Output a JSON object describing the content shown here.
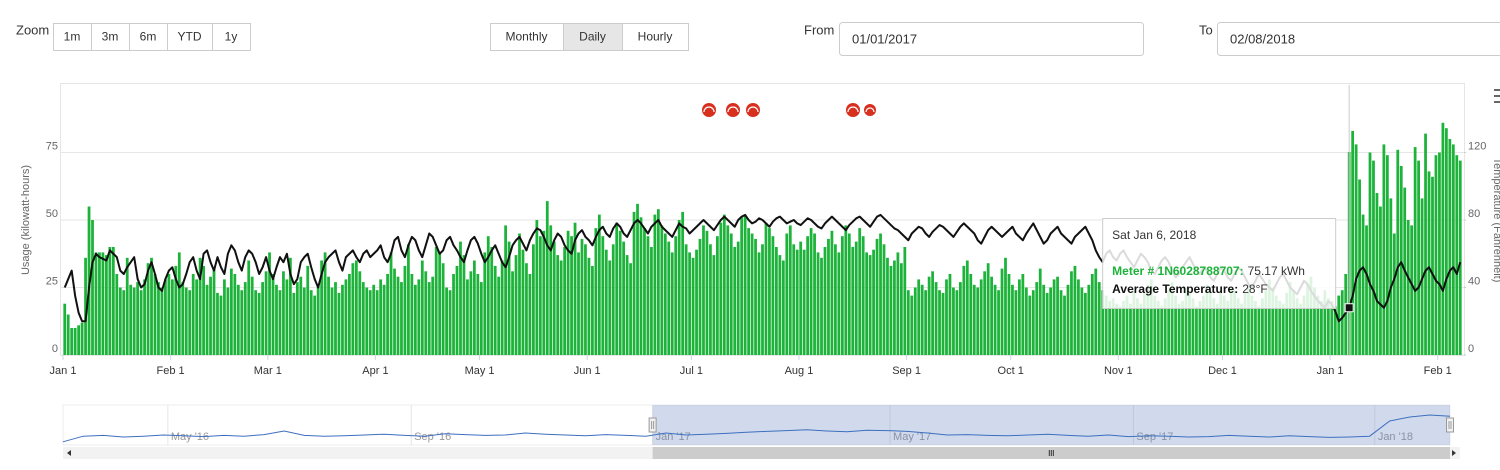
{
  "controls": {
    "zoom_label": "Zoom",
    "zoom_buttons": [
      "1m",
      "3m",
      "6m",
      "YTD",
      "1y"
    ],
    "period_buttons": [
      "Monthly",
      "Daily",
      "Hourly"
    ],
    "active_period": "Daily",
    "from_label": "From",
    "from_value": "01/01/2017",
    "to_label": "To",
    "to_value": "02/08/2018"
  },
  "chart_data": {
    "type": "combo",
    "y_title": "Usage (kilowatt-hours)",
    "y2_title": "Temperature (Fahrenheit)",
    "xlim": [
      0,
      403
    ],
    "xticks": [
      {
        "value": 0,
        "label": "Jan 1"
      },
      {
        "value": 31,
        "label": "Feb 1"
      },
      {
        "value": 59,
        "label": "Mar 1"
      },
      {
        "value": 90,
        "label": "Apr 1"
      },
      {
        "value": 120,
        "label": "May 1"
      },
      {
        "value": 151,
        "label": "Jun 1"
      },
      {
        "value": 181,
        "label": "Jul 1"
      },
      {
        "value": 212,
        "label": "Aug 1"
      },
      {
        "value": 243,
        "label": "Sep 1"
      },
      {
        "value": 273,
        "label": "Oct 1"
      },
      {
        "value": 304,
        "label": "Nov 1"
      },
      {
        "value": 334,
        "label": "Dec 1"
      },
      {
        "value": 365,
        "label": "Jan 1"
      },
      {
        "value": 396,
        "label": "Feb 1"
      }
    ],
    "ylim": [
      0,
      100
    ],
    "yticks": [
      0,
      25,
      50,
      75
    ],
    "y2lim": [
      0,
      160
    ],
    "y2ticks": [
      0,
      40,
      80,
      120
    ],
    "grid": true,
    "series": [
      {
        "type": "bar",
        "color": "#1db33a",
        "values": [
          19,
          15,
          10,
          10,
          11,
          12,
          36,
          55,
          50,
          38,
          38,
          38,
          37,
          40,
          40,
          30,
          25,
          24,
          36,
          26,
          25,
          27,
          24,
          28,
          34,
          36,
          30,
          27,
          25,
          28,
          30,
          28,
          33,
          38,
          27,
          25,
          24,
          30,
          28,
          36,
          33,
          26,
          29,
          32,
          23,
          22,
          28,
          25,
          32,
          30,
          26,
          24,
          27,
          35,
          29,
          24,
          23,
          27,
          31,
          38,
          30,
          26,
          24,
          31,
          28,
          36,
          23,
          27,
          29,
          25,
          33,
          24,
          22,
          26,
          35,
          38,
          29,
          25,
          27,
          23,
          26,
          28,
          30,
          34,
          35,
          31,
          27,
          25,
          24,
          26,
          24,
          28,
          26,
          30,
          38,
          32,
          29,
          27,
          33,
          41,
          30,
          26,
          28,
          35,
          31,
          27,
          29,
          40,
          38,
          34,
          25,
          24,
          30,
          33,
          42,
          37,
          28,
          31,
          35,
          30,
          27,
          38,
          44,
          40,
          33,
          29,
          35,
          48,
          42,
          31,
          37,
          45,
          39,
          34,
          30,
          41,
          50,
          44,
          46,
          57,
          48,
          42,
          37,
          35,
          40,
          46,
          44,
          49,
          38,
          43,
          41,
          36,
          33,
          47,
          52,
          44,
          39,
          35,
          41,
          49,
          46,
          42,
          37,
          34,
          53,
          56,
          51,
          47,
          44,
          40,
          52,
          54,
          48,
          45,
          42,
          38,
          44,
          50,
          53,
          41,
          38,
          36,
          39,
          43,
          48,
          46,
          41,
          37,
          44,
          49,
          52,
          48,
          45,
          40,
          42,
          51,
          52,
          47,
          45,
          43,
          38,
          41,
          49,
          47,
          44,
          40,
          37,
          35,
          45,
          48,
          41,
          39,
          42,
          39,
          44,
          47,
          45,
          38,
          36,
          40,
          43,
          46,
          41,
          38,
          44,
          48,
          45,
          40,
          42,
          47,
          44,
          38,
          37,
          39,
          43,
          45,
          41,
          36,
          33,
          35,
          38,
          34,
          40,
          24,
          22,
          25,
          28,
          26,
          24,
          29,
          31,
          27,
          24,
          23,
          28,
          30,
          25,
          24,
          27,
          33,
          35,
          30,
          26,
          25,
          28,
          31,
          34,
          29,
          26,
          24,
          32,
          36,
          30,
          26,
          24,
          28,
          30,
          25,
          22,
          24,
          27,
          32,
          26,
          23,
          25,
          28,
          29,
          24,
          22,
          26,
          31,
          33,
          28,
          25,
          23,
          26,
          30,
          32,
          27,
          24,
          22,
          20,
          21,
          19,
          18,
          20,
          22,
          19,
          24,
          21,
          19,
          23,
          26,
          28,
          22,
          20,
          18,
          21,
          24,
          27,
          22,
          19,
          20,
          25,
          23,
          21,
          18,
          20,
          22,
          26,
          24,
          21,
          19,
          23,
          22,
          20,
          25,
          24,
          21,
          19,
          23,
          26,
          22,
          20,
          18,
          21,
          24,
          28,
          25,
          22,
          20,
          19,
          23,
          27,
          24,
          21,
          19,
          22,
          26,
          29,
          25,
          22,
          20,
          24,
          21,
          20,
          18,
          22,
          24,
          30,
          75.17,
          83,
          78,
          65,
          52,
          48,
          75,
          72,
          60,
          55,
          78,
          74,
          58,
          45,
          76,
          70,
          62,
          50,
          48,
          77,
          72,
          58,
          82,
          68,
          66,
          74,
          75,
          86,
          84,
          80,
          78,
          74,
          72
        ]
      },
      {
        "type": "line",
        "axis": "y2",
        "color": "#111111",
        "values": [
          40,
          45,
          50,
          35,
          25,
          20,
          20,
          40,
          55,
          60,
          58,
          57,
          56,
          62,
          60,
          58,
          50,
          48,
          52,
          55,
          58,
          45,
          40,
          42,
          50,
          55,
          48,
          40,
          38,
          45,
          50,
          52,
          45,
          40,
          42,
          48,
          55,
          58,
          50,
          45,
          60,
          62,
          55,
          50,
          58,
          52,
          48,
          60,
          65,
          62,
          55,
          50,
          58,
          62,
          60,
          55,
          48,
          52,
          58,
          50,
          45,
          52,
          58,
          55,
          60,
          48,
          42,
          45,
          55,
          58,
          60,
          52,
          45,
          40,
          48,
          55,
          58,
          60,
          62,
          55,
          50,
          58,
          60,
          62,
          58,
          55,
          60,
          62,
          58,
          60,
          62,
          65,
          58,
          55,
          60,
          68,
          70,
          62,
          58,
          65,
          70,
          68,
          62,
          58,
          65,
          72,
          70,
          65,
          60,
          62,
          68,
          70,
          65,
          62,
          58,
          55,
          62,
          68,
          70,
          66,
          60,
          55,
          58,
          62,
          65,
          60,
          55,
          52,
          58,
          65,
          68,
          70,
          66,
          62,
          68,
          72,
          75,
          74,
          70,
          65,
          62,
          68,
          72,
          70,
          65,
          62,
          60,
          68,
          72,
          74,
          70,
          68,
          65,
          70,
          74,
          76,
          72,
          70,
          75,
          78,
          76,
          72,
          70,
          74,
          78,
          80,
          78,
          75,
          72,
          76,
          78,
          80,
          76,
          74,
          72,
          70,
          74,
          78,
          76,
          75,
          72,
          74,
          76,
          78,
          80,
          78,
          76,
          74,
          77,
          80,
          82,
          80,
          78,
          76,
          80,
          82,
          83,
          80,
          78,
          79,
          81,
          80,
          78,
          76,
          79,
          81,
          82,
          80,
          78,
          79,
          80,
          78,
          77,
          79,
          81,
          80,
          78,
          76,
          75,
          78,
          80,
          82,
          80,
          78,
          76,
          74,
          77,
          79,
          81,
          82,
          80,
          78,
          76,
          79,
          82,
          83,
          81,
          79,
          77,
          75,
          74,
          72,
          70,
          68,
          72,
          74,
          76,
          75,
          72,
          70,
          73,
          75,
          77,
          76,
          74,
          72,
          70,
          73,
          76,
          78,
          76,
          74,
          72,
          68,
          66,
          70,
          74,
          76,
          74,
          72,
          70,
          72,
          74,
          76,
          72,
          70,
          68,
          72,
          75,
          78,
          74,
          70,
          66,
          68,
          72,
          74,
          76,
          72,
          70,
          68,
          66,
          70,
          72,
          74,
          76,
          72,
          68,
          62,
          58,
          55,
          60,
          62,
          58,
          56,
          60,
          62,
          58,
          55,
          52,
          56,
          60,
          58,
          55,
          50,
          48,
          52,
          56,
          58,
          55,
          50,
          46,
          48,
          52,
          55,
          58,
          54,
          50,
          48,
          52,
          50,
          46,
          44,
          48,
          52,
          50,
          46,
          44,
          48,
          52,
          50,
          46,
          42,
          40,
          44,
          48,
          45,
          42,
          40,
          38,
          42,
          46,
          48,
          44,
          40,
          38,
          36,
          40,
          44,
          42,
          38,
          35,
          32,
          30,
          28,
          32,
          30,
          26,
          20,
          22,
          25,
          28,
          35,
          45,
          50,
          52,
          48,
          42,
          38,
          32,
          30,
          28,
          32,
          40,
          45,
          52,
          55,
          50,
          46,
          42,
          38,
          40,
          45,
          50,
          52,
          48,
          44,
          42,
          38,
          45,
          50,
          52,
          48,
          55
        ]
      }
    ],
    "tooltip": {
      "x": 370,
      "title": "Sat Jan 6, 2018",
      "rows": [
        {
          "name": "Meter # 1N6028788707:",
          "value": "75.17 kWh"
        },
        {
          "name": "Average Temperature:",
          "value": "28°F"
        }
      ]
    },
    "navigator": {
      "xlim": [
        -298,
        403
      ],
      "ylim": [
        0,
        100
      ],
      "xticks": [
        {
          "value": -245,
          "label": "May '16"
        },
        {
          "value": -122,
          "label": "Sep '16"
        },
        {
          "value": 0,
          "label": "Jan '17"
        },
        {
          "value": 120,
          "label": "May '17"
        },
        {
          "value": 243,
          "label": "Sep '17"
        },
        {
          "value": 365,
          "label": "Jan '18"
        }
      ],
      "color": "#3d6fbf",
      "values": [
        8,
        22,
        24,
        20,
        22,
        25,
        23,
        21,
        24,
        22,
        26,
        35,
        24,
        22,
        23,
        25,
        27,
        24,
        22,
        28,
        26,
        24,
        25,
        30,
        27,
        25,
        23,
        26,
        24,
        22,
        30,
        25,
        27,
        29,
        32,
        34,
        36,
        38,
        35,
        33,
        37,
        36,
        34,
        30,
        25,
        26,
        24,
        23,
        25,
        27,
        24,
        22,
        25,
        21,
        23,
        22,
        20,
        21,
        24,
        22,
        20,
        23,
        21,
        19,
        20,
        22,
        60,
        70,
        75,
        72
      ]
    }
  }
}
